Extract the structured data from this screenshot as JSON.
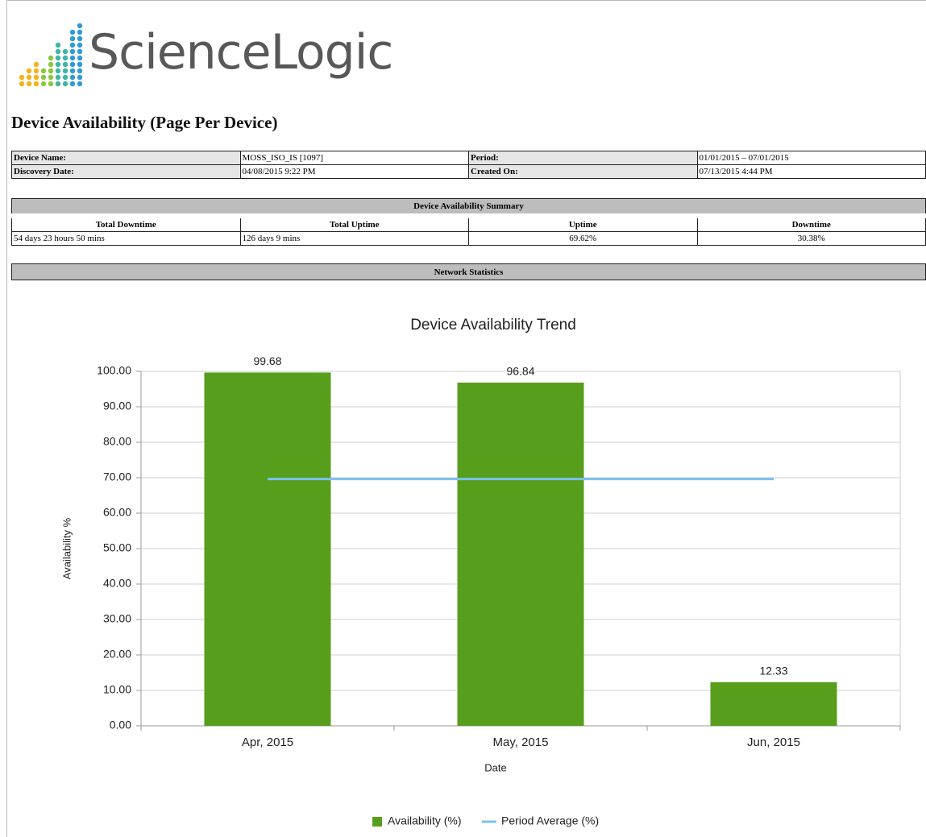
{
  "header": {
    "logo": "ScienceLogic",
    "title": "Device Availability (Page Per Device)"
  },
  "info_table": {
    "rows": [
      [
        "Device Name:",
        "MOSS_ISO_IS [1097]",
        "Period:",
        "01/01/2015 – 07/01/2015"
      ],
      [
        "Discovery Date:",
        "04/08/2015 9:22 PM",
        "Created On:",
        "07/13/2015 4:44 PM"
      ]
    ]
  },
  "summary_table": {
    "title": "Device Availability Summary",
    "columns": [
      "Total Downtime",
      "Total Uptime",
      "Uptime",
      "Downtime"
    ],
    "rows": [
      [
        "54 days 23 hours 50 mins",
        "126 days 9 mins",
        "69.62%",
        "30.38%"
      ]
    ]
  },
  "section": {
    "title": "Network Statistics"
  },
  "chart_data": {
    "type": "bar",
    "title": "Device Availability Trend",
    "xlabel": "Date",
    "ylabel": "Availability %",
    "categories": [
      "Apr, 2015",
      "May, 2015",
      "Jun, 2015"
    ],
    "series": [
      {
        "name": "Availability (%)",
        "type": "bar",
        "color": "#589e1d",
        "values": [
          99.68,
          96.84,
          12.33
        ]
      },
      {
        "name": "Period Average (%)",
        "type": "line",
        "color": "#7dc0ec",
        "values": [
          69.62,
          69.62,
          69.62
        ]
      }
    ],
    "ylim": [
      0,
      100
    ],
    "yticks": [
      {
        "value": 0,
        "label": "0.00"
      },
      {
        "value": 10,
        "label": "10.00"
      },
      {
        "value": 20,
        "label": "20.00"
      },
      {
        "value": 30,
        "label": "30.00"
      },
      {
        "value": 40,
        "label": "40.00"
      },
      {
        "value": 50,
        "label": "50.00"
      },
      {
        "value": 60,
        "label": "60.00"
      },
      {
        "value": 70,
        "label": "70.00"
      },
      {
        "value": 80,
        "label": "80.00"
      },
      {
        "value": 90,
        "label": "90.00"
      },
      {
        "value": 100,
        "label": "100.00"
      }
    ],
    "grid": true,
    "legend": "bottom"
  }
}
